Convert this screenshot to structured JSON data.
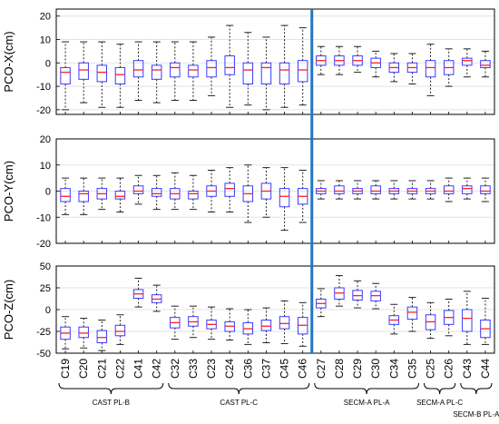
{
  "chart_data": {
    "type": "box",
    "categories": [
      "C19",
      "C20",
      "C21",
      "C22",
      "C41",
      "C42",
      "C32",
      "C33",
      "C23",
      "C24",
      "C36",
      "C37",
      "C45",
      "C46",
      "C27",
      "C28",
      "C29",
      "C30",
      "C34",
      "C35",
      "C25",
      "C26",
      "C43",
      "C44"
    ],
    "divider_after_index": 13,
    "groups": [
      {
        "label": "CAST PL-B",
        "from": 0,
        "to": 5
      },
      {
        "label": "CAST PL-C",
        "from": 6,
        "to": 13
      },
      {
        "label": "SECM-A PL-A",
        "from": 14,
        "to": 19
      },
      {
        "label": "SECM-A PL-C",
        "from": 20,
        "to": 21
      },
      {
        "label": "SECM-B PL-A",
        "from": 22,
        "to": 23
      }
    ],
    "colors": {
      "box": "#3a3aff",
      "median": "#ff2020",
      "whisker": "#222222",
      "divider": "#1f77c4",
      "grid": "#e3e3e3"
    },
    "panels": [
      {
        "ylabel": "PCO-X(cm)",
        "ylim": [
          -22,
          23
        ],
        "yticks": [
          -20,
          -10,
          0,
          10,
          20
        ],
        "grid": true,
        "boxes": [
          [
            -20,
            -9,
            -4,
            -2,
            9
          ],
          [
            -17,
            -7,
            -3,
            0,
            9
          ],
          [
            -19,
            -8,
            -4,
            -1,
            9
          ],
          [
            -19,
            -9,
            -5,
            -2,
            8
          ],
          [
            -16,
            -6,
            -3,
            1,
            9
          ],
          [
            -17,
            -7,
            -3,
            -1,
            9
          ],
          [
            -16,
            -6,
            -2,
            0,
            9
          ],
          [
            -16,
            -6,
            -3,
            -1,
            9
          ],
          [
            -14,
            -6,
            -2,
            1,
            11
          ],
          [
            -19,
            -5,
            -2,
            3,
            16
          ],
          [
            -18,
            -9,
            -3,
            0,
            13
          ],
          [
            -20,
            -9,
            -2,
            0,
            11
          ],
          [
            -19,
            -9,
            -3,
            0,
            16
          ],
          [
            -18,
            -8,
            -3,
            1,
            15
          ],
          [
            -5,
            -1,
            1,
            3,
            7
          ],
          [
            -5,
            -1,
            1,
            3,
            7
          ],
          [
            -4,
            -1,
            1,
            3,
            7
          ],
          [
            -6,
            -2,
            0,
            2,
            5
          ],
          [
            -8,
            -4,
            -2,
            0,
            4
          ],
          [
            -9,
            -4,
            -2,
            0,
            4
          ],
          [
            -14,
            -6,
            -2,
            1,
            8
          ],
          [
            -10,
            -5,
            -2,
            1,
            6
          ],
          [
            -6,
            -1,
            1,
            2,
            6
          ],
          [
            -6,
            -2,
            -1,
            1,
            5
          ]
        ]
      },
      {
        "ylabel": "PCO-Y(cm)",
        "ylim": [
          -20,
          20
        ],
        "yticks": [
          -20,
          -10,
          0,
          10,
          20
        ],
        "grid": true,
        "boxes": [
          [
            -9,
            -4,
            -2,
            1,
            5
          ],
          [
            -9,
            -4,
            -1,
            0,
            5
          ],
          [
            -7,
            -3,
            -1,
            1,
            5
          ],
          [
            -8,
            -3,
            -2,
            0,
            5
          ],
          [
            -5,
            -1,
            0,
            2,
            6
          ],
          [
            -7,
            -2,
            -1,
            1,
            6
          ],
          [
            -7,
            -3,
            -1,
            1,
            7
          ],
          [
            -7,
            -3,
            -1,
            0,
            6
          ],
          [
            -8,
            -2,
            0,
            2,
            8
          ],
          [
            -8,
            -2,
            1,
            3,
            9
          ],
          [
            -12,
            -4,
            -1,
            2,
            10
          ],
          [
            -10,
            -3,
            0,
            3,
            9
          ],
          [
            -15,
            -6,
            -2,
            1,
            9
          ],
          [
            -12,
            -5,
            -2,
            1,
            8
          ],
          [
            -3,
            -1,
            0,
            1,
            4
          ],
          [
            -3,
            -1,
            0,
            2,
            4
          ],
          [
            -3,
            -1,
            0,
            1,
            4
          ],
          [
            -3,
            -1,
            0,
            2,
            4
          ],
          [
            -3,
            -1,
            0,
            1,
            4
          ],
          [
            -3,
            -1,
            0,
            1,
            4
          ],
          [
            -3,
            -1,
            0,
            1,
            4
          ],
          [
            -4,
            -1,
            0,
            2,
            5
          ],
          [
            -3,
            -1,
            1,
            2,
            5
          ],
          [
            -4,
            -1,
            0,
            2,
            5
          ]
        ]
      },
      {
        "ylabel": "PCO-Z(cm)",
        "ylim": [
          -50,
          50
        ],
        "yticks": [
          -50,
          -25,
          0,
          25,
          50
        ],
        "grid": true,
        "boxes": [
          [
            -45,
            -34,
            -27,
            -20,
            -8
          ],
          [
            -44,
            -32,
            -27,
            -20,
            -10
          ],
          [
            -47,
            -38,
            -32,
            -24,
            -12
          ],
          [
            -40,
            -30,
            -25,
            -18,
            -6
          ],
          [
            3,
            13,
            18,
            23,
            36
          ],
          [
            -2,
            8,
            12,
            17,
            28
          ],
          [
            -34,
            -21,
            -15,
            -9,
            4
          ],
          [
            -32,
            -19,
            -14,
            -8,
            4
          ],
          [
            -34,
            -22,
            -17,
            -12,
            3
          ],
          [
            -35,
            -25,
            -19,
            -14,
            1
          ],
          [
            -40,
            -28,
            -22,
            -15,
            0
          ],
          [
            -38,
            -24,
            -19,
            -12,
            2
          ],
          [
            -39,
            -22,
            -16,
            -8,
            10
          ],
          [
            -42,
            -28,
            -18,
            -9,
            8
          ],
          [
            -8,
            2,
            7,
            12,
            24
          ],
          [
            4,
            12,
            19,
            25,
            39
          ],
          [
            2,
            11,
            16,
            22,
            33
          ],
          [
            1,
            10,
            16,
            21,
            30
          ],
          [
            -28,
            -17,
            -12,
            -7,
            6
          ],
          [
            -25,
            -11,
            -3,
            3,
            14
          ],
          [
            -33,
            -23,
            -14,
            -6,
            8
          ],
          [
            -30,
            -17,
            -9,
            -1,
            12
          ],
          [
            -40,
            -25,
            -10,
            0,
            21
          ],
          [
            -40,
            -32,
            -22,
            -12,
            13
          ]
        ]
      }
    ]
  }
}
